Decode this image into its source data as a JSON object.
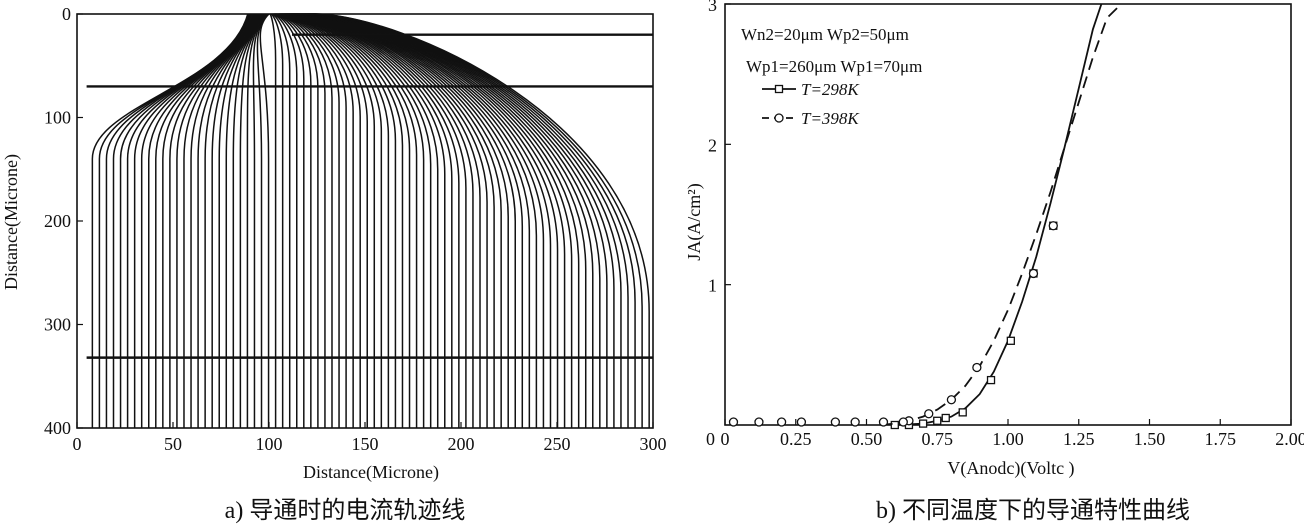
{
  "chart_data": [
    {
      "type": "line",
      "caption": "a) 导通时的电流轨迹线",
      "xlabel": "Distance(Microne)",
      "ylabel": "Distance(Microne)",
      "xlim": [
        0,
        300
      ],
      "ylim": [
        0,
        400
      ],
      "y_inverted": true,
      "xticks": [
        0,
        50,
        100,
        150,
        200,
        250,
        300
      ],
      "yticks": [
        0,
        100,
        200,
        300,
        400
      ],
      "horizontal_lines": [
        {
          "y": 20,
          "x_from": 112,
          "x_to": 300
        },
        {
          "y": 70,
          "x_from": 5,
          "x_to": 300
        },
        {
          "y": 332,
          "x_from": 5,
          "x_to": 300
        }
      ],
      "trajectories": {
        "count": 80,
        "x_first": 8,
        "x_last": 298,
        "converge_x": 100,
        "converge_y": 0
      }
    },
    {
      "type": "line",
      "caption": "b) 不同温度下的导通特性曲线",
      "xlabel": "V(Anodc)(Voltc )",
      "ylabel": "JA(A/cm²)",
      "xlim": [
        0,
        2.0
      ],
      "ylim": [
        0,
        3
      ],
      "xtick_labels": [
        "0",
        "0.25",
        "0.50",
        "0.75",
        "1.00",
        "1.25",
        "1.50",
        "1.75",
        "2.00"
      ],
      "xticks": [
        0,
        0.25,
        0.5,
        0.75,
        1.0,
        1.25,
        1.5,
        1.75,
        2.0
      ],
      "ytick_labels": [
        "1",
        "2",
        "3"
      ],
      "yticks": [
        1,
        2,
        3
      ],
      "annotations": [
        "Wn2=20μm   Wp2=50μm",
        "Wp1=260μm  Wp1=70μm"
      ],
      "legend_position": "top-left",
      "series": [
        {
          "name": "T=298K",
          "style": "solid",
          "marker": "square",
          "x": [
            0.6,
            0.7,
            0.75,
            0.8,
            0.85,
            0.9,
            0.95,
            1.0,
            1.05,
            1.1,
            1.15,
            1.2,
            1.25,
            1.3,
            1.33
          ],
          "y": [
            0.0,
            0.01,
            0.03,
            0.06,
            0.12,
            0.22,
            0.38,
            0.6,
            0.88,
            1.2,
            1.58,
            1.98,
            2.4,
            2.82,
            3.0
          ],
          "markers_x": [
            0.6,
            0.65,
            0.7,
            0.75,
            0.78,
            0.84,
            0.94,
            1.01,
            1.09,
            1.16
          ],
          "markers_y": [
            0.0,
            0.0,
            0.01,
            0.03,
            0.05,
            0.09,
            0.32,
            0.6,
            1.08,
            1.42
          ]
        },
        {
          "name": "T=398K",
          "style": "dashed",
          "marker": "circle",
          "x": [
            0.55,
            0.6,
            0.65,
            0.7,
            0.75,
            0.8,
            0.85,
            0.9,
            0.95,
            1.0,
            1.05,
            1.1,
            1.15,
            1.2,
            1.25,
            1.3,
            1.35,
            1.4
          ],
          "y": [
            0.0,
            0.01,
            0.03,
            0.06,
            0.11,
            0.18,
            0.28,
            0.42,
            0.6,
            0.82,
            1.08,
            1.36,
            1.66,
            1.98,
            2.3,
            2.62,
            2.9,
            3.0
          ],
          "markers_x": [
            0.65,
            0.72,
            0.8,
            0.89,
            1.09,
            1.16
          ],
          "markers_y": [
            0.03,
            0.08,
            0.18,
            0.41,
            1.08,
            1.42
          ]
        },
        {
          "name": "",
          "style": "none",
          "marker": "circle",
          "x": [
            0.03,
            0.12,
            0.2,
            0.27,
            0.39,
            0.46,
            0.56,
            0.63
          ],
          "y": [
            0,
            0,
            0,
            0,
            0,
            0,
            0,
            0
          ]
        }
      ]
    }
  ]
}
